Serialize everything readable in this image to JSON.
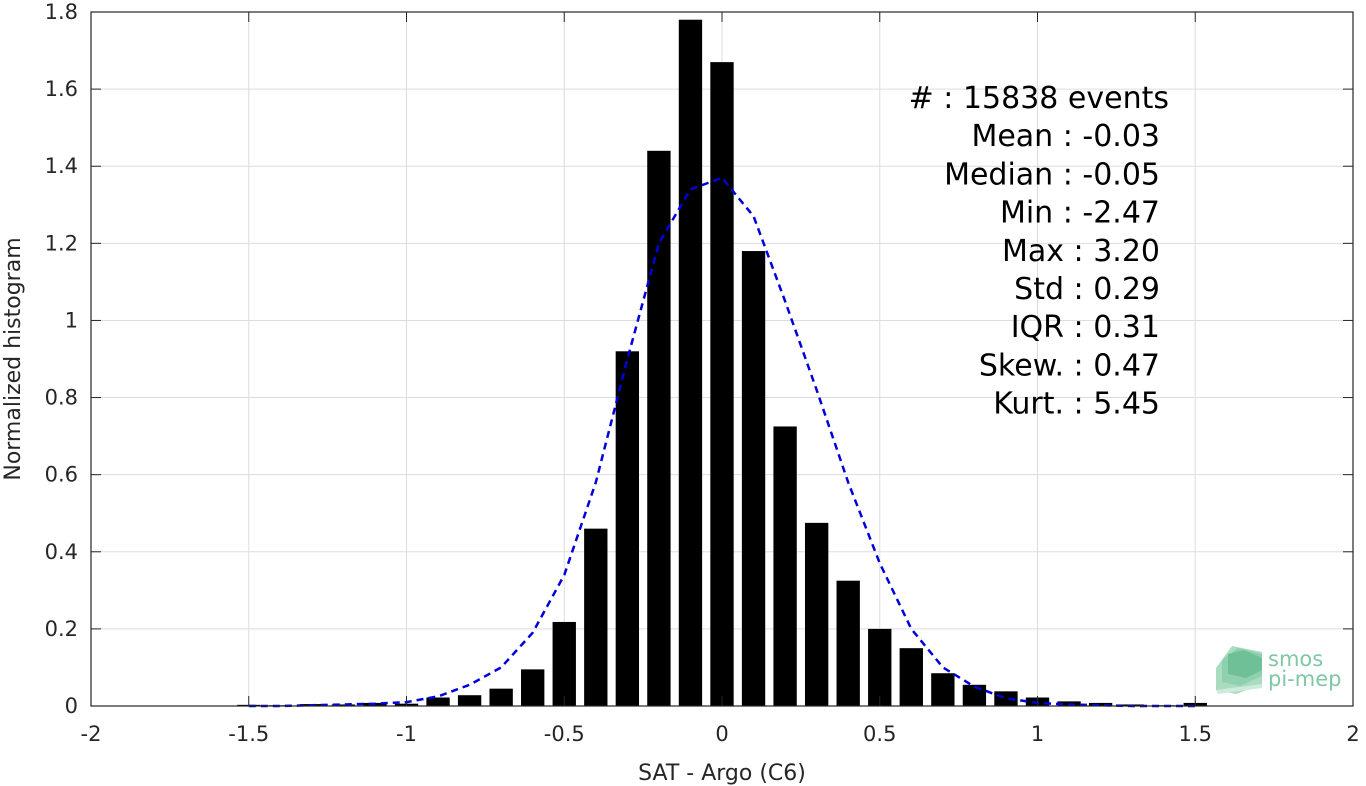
{
  "chart_data": {
    "type": "bar",
    "title": "",
    "xlabel": "SAT - Argo (C6)",
    "ylabel": "Normalized histogram",
    "xlim": [
      -2,
      2
    ],
    "ylim": [
      0,
      1.8
    ],
    "xticks": [
      -2,
      -1.5,
      -1,
      -0.5,
      0,
      0.5,
      1,
      1.5,
      2
    ],
    "xtick_labels": [
      "-2",
      "-1.5",
      "-1",
      "-0.5",
      "0",
      "0.5",
      "1",
      "1.5",
      "2"
    ],
    "yticks": [
      0,
      0.2,
      0.4,
      0.6,
      0.8,
      1,
      1.2,
      1.4,
      1.6,
      1.8
    ],
    "ytick_labels": [
      "0",
      "0.2",
      "0.4",
      "0.6",
      "0.8",
      "1",
      "1.2",
      "1.4",
      "1.6",
      "1.8"
    ],
    "grid": true,
    "bar_color": "#000000",
    "fit_color": "#0000dd",
    "x": [
      -1.5,
      -1.4,
      -1.3,
      -1.2,
      -1.1,
      -1.0,
      -0.9,
      -0.8,
      -0.7,
      -0.6,
      -0.5,
      -0.4,
      -0.3,
      -0.2,
      -0.1,
      0.0,
      0.1,
      0.2,
      0.3,
      0.4,
      0.5,
      0.6,
      0.7,
      0.8,
      0.9,
      1.0,
      1.1,
      1.2,
      1.3,
      1.4,
      1.5
    ],
    "values": [
      0.003,
      0.002,
      0.005,
      0.004,
      0.008,
      0.006,
      0.022,
      0.028,
      0.045,
      0.095,
      0.218,
      0.46,
      0.92,
      1.44,
      1.78,
      1.67,
      1.18,
      0.725,
      0.475,
      0.325,
      0.2,
      0.15,
      0.085,
      0.055,
      0.038,
      0.022,
      0.012,
      0.008,
      0.004,
      0.002,
      0.008
    ],
    "fit_curve": {
      "style": "dashed",
      "x": [
        -1.5,
        -1.4,
        -1.3,
        -1.2,
        -1.1,
        -1.0,
        -0.9,
        -0.8,
        -0.7,
        -0.6,
        -0.5,
        -0.4,
        -0.3,
        -0.2,
        -0.1,
        0.0,
        0.1,
        0.2,
        0.3,
        0.4,
        0.5,
        0.6,
        0.7,
        0.8,
        0.9,
        1.0,
        1.1,
        1.2,
        1.3,
        1.4,
        1.5
      ],
      "y": [
        0.0,
        0.0,
        0.002,
        0.004,
        0.006,
        0.01,
        0.025,
        0.055,
        0.1,
        0.19,
        0.34,
        0.58,
        0.9,
        1.2,
        1.34,
        1.37,
        1.27,
        1.05,
        0.82,
        0.58,
        0.37,
        0.2,
        0.1,
        0.05,
        0.02,
        0.008,
        0.004,
        0.002,
        0.0,
        0.0,
        0.0
      ]
    },
    "annotations": [
      "#   : 15838 events",
      "Mean : -0.03",
      "Median : -0.05",
      "Min : -2.47",
      "Max : 3.20",
      "Std : 0.29",
      "IQR : 0.31",
      "Skew. : 0.47",
      "Kurt. : 5.45"
    ]
  },
  "logo": {
    "line1": "smos",
    "line2": "pi-mep"
  }
}
